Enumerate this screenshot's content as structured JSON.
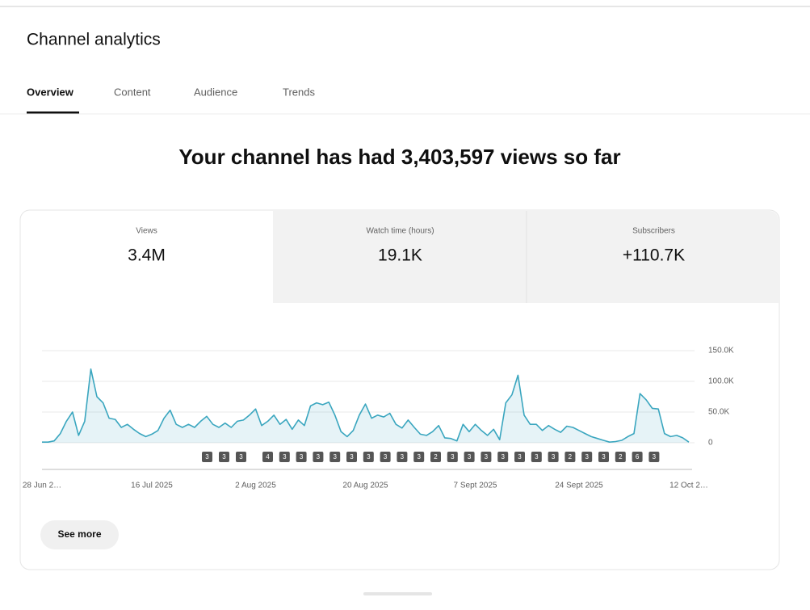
{
  "header": {
    "title": "Channel analytics"
  },
  "tabs": [
    "Overview",
    "Content",
    "Audience",
    "Trends"
  ],
  "headline": "Your channel has had 3,403,597 views so far",
  "metrics": [
    {
      "label": "Views",
      "value": "3.4M"
    },
    {
      "label": "Watch time (hours)",
      "value": "19.1K"
    },
    {
      "label": "Subscribers",
      "value": "+110.7K"
    }
  ],
  "chart_data": {
    "type": "line",
    "color": "#3aa6bf",
    "area": true,
    "grid": true,
    "categories": [
      "28 Jun 2…",
      null,
      null,
      null,
      null,
      null,
      null,
      null,
      null,
      null,
      null,
      null,
      null,
      null,
      null,
      null,
      null,
      null,
      "16 Jul 2025",
      null,
      null,
      null,
      null,
      null,
      null,
      null,
      null,
      null,
      null,
      null,
      null,
      null,
      null,
      null,
      null,
      "2 Aug 2025",
      null,
      null,
      null,
      null,
      null,
      null,
      null,
      null,
      null,
      null,
      null,
      null,
      null,
      null,
      null,
      null,
      null,
      "20 Aug 2025",
      null,
      null,
      null,
      null,
      null,
      null,
      null,
      null,
      null,
      null,
      null,
      null,
      null,
      null,
      null,
      null,
      null,
      "7 Sept 2025",
      null,
      null,
      null,
      null,
      null,
      null,
      null,
      null,
      null,
      null,
      null,
      null,
      null,
      null,
      null,
      null,
      "24 Sept 2025",
      null,
      null,
      null,
      null,
      null,
      null,
      null,
      null,
      null,
      null,
      null,
      null,
      null,
      null,
      null,
      null,
      null,
      "12 Oct 2…"
    ],
    "values": [
      1000,
      1000,
      3000,
      15000,
      35000,
      50000,
      12000,
      35000,
      120000,
      75000,
      65000,
      40000,
      38000,
      25000,
      30000,
      22000,
      15000,
      10000,
      14000,
      20000,
      40000,
      53000,
      30000,
      25000,
      30000,
      25000,
      35000,
      43000,
      30000,
      25000,
      32000,
      25000,
      35000,
      37000,
      45000,
      55000,
      28000,
      35000,
      45000,
      30000,
      38000,
      22000,
      37000,
      28000,
      60000,
      65000,
      62000,
      66000,
      45000,
      18000,
      10000,
      20000,
      45000,
      63000,
      40000,
      45000,
      42000,
      48000,
      30000,
      24000,
      37000,
      25000,
      14000,
      12000,
      18000,
      28000,
      8000,
      7000,
      3000,
      30000,
      18000,
      30000,
      20000,
      12000,
      22000,
      5000,
      65000,
      78000,
      110000,
      45000,
      30000,
      30000,
      20000,
      28000,
      22000,
      17000,
      27000,
      25000,
      20000,
      15000,
      10000,
      7000,
      4000,
      1000,
      2000,
      4000,
      10000,
      15000,
      80000,
      70000,
      56000,
      55000,
      15000,
      10000,
      12000,
      8000,
      1000
    ],
    "ylim": [
      0,
      150000
    ],
    "yticks": [
      0,
      {
        "value": 50000,
        "label": "50.0K"
      },
      {
        "value": 100000,
        "label": "100.0K"
      },
      {
        "value": 150000,
        "label": "150.0K"
      }
    ],
    "upload_markers": [
      "3",
      "3",
      "3",
      "4",
      "3",
      "3",
      "3",
      "3",
      "3",
      "3",
      "3",
      "3",
      "3",
      "2",
      "3",
      "3",
      "3",
      "3",
      "3",
      "3",
      "3",
      "2",
      "3",
      "3",
      "2",
      "6",
      "3"
    ]
  },
  "button": "See more"
}
